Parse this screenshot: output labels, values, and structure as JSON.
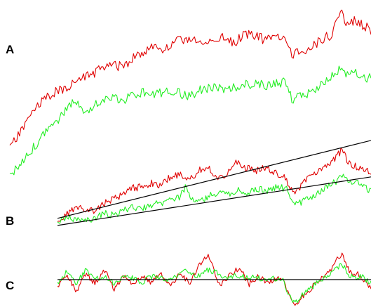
{
  "chart_data": [
    {
      "panel": "A",
      "type": "line",
      "title": "",
      "xlabel": "",
      "ylabel": "",
      "grid": false,
      "axes_visible": false,
      "x_range": [
        0,
        1
      ],
      "series": [
        {
          "color": "#e00000",
          "points": [
            [
              0.0,
              0.1
            ],
            [
              0.03,
              0.2
            ],
            [
              0.06,
              0.33
            ],
            [
              0.09,
              0.4
            ],
            [
              0.12,
              0.46
            ],
            [
              0.15,
              0.48
            ],
            [
              0.18,
              0.53
            ],
            [
              0.21,
              0.56
            ],
            [
              0.25,
              0.61
            ],
            [
              0.28,
              0.64
            ],
            [
              0.31,
              0.63
            ],
            [
              0.34,
              0.68
            ],
            [
              0.37,
              0.73
            ],
            [
              0.4,
              0.76
            ],
            [
              0.43,
              0.74
            ],
            [
              0.46,
              0.79
            ],
            [
              0.5,
              0.82
            ],
            [
              0.53,
              0.77
            ],
            [
              0.56,
              0.8
            ],
            [
              0.59,
              0.82
            ],
            [
              0.62,
              0.78
            ],
            [
              0.65,
              0.85
            ],
            [
              0.68,
              0.83
            ],
            [
              0.71,
              0.8
            ],
            [
              0.74,
              0.82
            ],
            [
              0.77,
              0.8
            ],
            [
              0.78,
              0.7
            ],
            [
              0.8,
              0.72
            ],
            [
              0.83,
              0.75
            ],
            [
              0.86,
              0.8
            ],
            [
              0.89,
              0.84
            ],
            [
              0.91,
              0.96
            ],
            [
              0.92,
              1.0
            ],
            [
              0.93,
              0.9
            ],
            [
              0.95,
              0.93
            ],
            [
              0.97,
              0.91
            ],
            [
              1.0,
              0.87
            ]
          ]
        },
        {
          "color": "#22ee22",
          "points": [
            [
              0.0,
              -0.08
            ],
            [
              0.03,
              -0.02
            ],
            [
              0.06,
              0.08
            ],
            [
              0.09,
              0.18
            ],
            [
              0.12,
              0.24
            ],
            [
              0.15,
              0.34
            ],
            [
              0.18,
              0.4
            ],
            [
              0.2,
              0.36
            ],
            [
              0.22,
              0.34
            ],
            [
              0.25,
              0.41
            ],
            [
              0.28,
              0.43
            ],
            [
              0.31,
              0.4
            ],
            [
              0.34,
              0.44
            ],
            [
              0.37,
              0.46
            ],
            [
              0.4,
              0.45
            ],
            [
              0.43,
              0.46
            ],
            [
              0.46,
              0.47
            ],
            [
              0.49,
              0.43
            ],
            [
              0.52,
              0.47
            ],
            [
              0.55,
              0.49
            ],
            [
              0.57,
              0.5
            ],
            [
              0.59,
              0.47
            ],
            [
              0.62,
              0.49
            ],
            [
              0.65,
              0.51
            ],
            [
              0.68,
              0.51
            ],
            [
              0.71,
              0.51
            ],
            [
              0.74,
              0.52
            ],
            [
              0.77,
              0.53
            ],
            [
              0.78,
              0.4
            ],
            [
              0.8,
              0.43
            ],
            [
              0.83,
              0.46
            ],
            [
              0.86,
              0.51
            ],
            [
              0.89,
              0.56
            ],
            [
              0.91,
              0.6
            ],
            [
              0.92,
              0.64
            ],
            [
              0.93,
              0.57
            ],
            [
              0.95,
              0.59
            ],
            [
              0.97,
              0.57
            ],
            [
              1.0,
              0.55
            ]
          ]
        }
      ]
    },
    {
      "panel": "B",
      "type": "line",
      "title": "",
      "xlabel": "",
      "ylabel": "",
      "grid": false,
      "axes_visible": false,
      "x_range": [
        0,
        1
      ],
      "series": [
        {
          "color": "#e00000",
          "points": [
            [
              0.0,
              0.0
            ],
            [
              0.03,
              0.1
            ],
            [
              0.06,
              0.15
            ],
            [
              0.09,
              0.14
            ],
            [
              0.12,
              0.12
            ],
            [
              0.15,
              0.2
            ],
            [
              0.18,
              0.25
            ],
            [
              0.21,
              0.28
            ],
            [
              0.24,
              0.35
            ],
            [
              0.27,
              0.36
            ],
            [
              0.3,
              0.4
            ],
            [
              0.33,
              0.38
            ],
            [
              0.36,
              0.46
            ],
            [
              0.39,
              0.48
            ],
            [
              0.42,
              0.42
            ],
            [
              0.45,
              0.52
            ],
            [
              0.48,
              0.55
            ],
            [
              0.51,
              0.46
            ],
            [
              0.54,
              0.48
            ],
            [
              0.57,
              0.6
            ],
            [
              0.6,
              0.55
            ],
            [
              0.63,
              0.52
            ],
            [
              0.66,
              0.55
            ],
            [
              0.69,
              0.5
            ],
            [
              0.72,
              0.48
            ],
            [
              0.74,
              0.36
            ],
            [
              0.76,
              0.3
            ],
            [
              0.79,
              0.42
            ],
            [
              0.82,
              0.48
            ],
            [
              0.85,
              0.55
            ],
            [
              0.88,
              0.62
            ],
            [
              0.9,
              0.7
            ],
            [
              0.91,
              0.74
            ],
            [
              0.92,
              0.64
            ],
            [
              0.94,
              0.58
            ],
            [
              0.96,
              0.55
            ],
            [
              0.98,
              0.52
            ],
            [
              1.0,
              0.5
            ]
          ]
        },
        {
          "color": "#22ee22",
          "points": [
            [
              0.0,
              0.0
            ],
            [
              0.03,
              0.06
            ],
            [
              0.06,
              0.04
            ],
            [
              0.09,
              0.02
            ],
            [
              0.12,
              0.05
            ],
            [
              0.15,
              0.1
            ],
            [
              0.18,
              0.08
            ],
            [
              0.21,
              0.13
            ],
            [
              0.24,
              0.16
            ],
            [
              0.27,
              0.14
            ],
            [
              0.3,
              0.18
            ],
            [
              0.33,
              0.2
            ],
            [
              0.36,
              0.24
            ],
            [
              0.39,
              0.26
            ],
            [
              0.41,
              0.36
            ],
            [
              0.43,
              0.24
            ],
            [
              0.46,
              0.22
            ],
            [
              0.49,
              0.28
            ],
            [
              0.52,
              0.32
            ],
            [
              0.55,
              0.3
            ],
            [
              0.58,
              0.33
            ],
            [
              0.61,
              0.3
            ],
            [
              0.64,
              0.34
            ],
            [
              0.67,
              0.32
            ],
            [
              0.7,
              0.36
            ],
            [
              0.73,
              0.34
            ],
            [
              0.75,
              0.18
            ],
            [
              0.77,
              0.2
            ],
            [
              0.8,
              0.24
            ],
            [
              0.83,
              0.3
            ],
            [
              0.86,
              0.36
            ],
            [
              0.89,
              0.42
            ],
            [
              0.91,
              0.48
            ],
            [
              0.93,
              0.4
            ],
            [
              0.95,
              0.42
            ],
            [
              0.97,
              0.38
            ],
            [
              1.0,
              0.32
            ]
          ]
        },
        {
          "color": "#000000",
          "role": "linear trend of red series",
          "points": [
            [
              0.0,
              0.05
            ],
            [
              1.0,
              0.82
            ]
          ]
        },
        {
          "color": "#000000",
          "role": "linear trend of green series",
          "points": [
            [
              0.0,
              -0.02
            ],
            [
              1.0,
              0.46
            ]
          ]
        }
      ]
    },
    {
      "panel": "C",
      "type": "line",
      "title": "",
      "xlabel": "",
      "ylabel": "",
      "grid": false,
      "axes_visible": false,
      "x_range": [
        0,
        1
      ],
      "baseline": 0,
      "series": [
        {
          "color": "#e00000",
          "points": [
            [
              0.0,
              -0.1
            ],
            [
              0.03,
              0.05
            ],
            [
              0.06,
              -0.15
            ],
            [
              0.09,
              0.08
            ],
            [
              0.12,
              -0.05
            ],
            [
              0.15,
              0.12
            ],
            [
              0.18,
              -0.12
            ],
            [
              0.21,
              0.05
            ],
            [
              0.24,
              -0.08
            ],
            [
              0.27,
              0.06
            ],
            [
              0.3,
              -0.04
            ],
            [
              0.33,
              0.08
            ],
            [
              0.36,
              -0.1
            ],
            [
              0.39,
              0.1
            ],
            [
              0.42,
              -0.05
            ],
            [
              0.45,
              0.18
            ],
            [
              0.48,
              0.3
            ],
            [
              0.5,
              0.1
            ],
            [
              0.52,
              -0.08
            ],
            [
              0.55,
              0.05
            ],
            [
              0.58,
              0.15
            ],
            [
              0.61,
              -0.06
            ],
            [
              0.64,
              0.04
            ],
            [
              0.67,
              -0.04
            ],
            [
              0.7,
              0.02
            ],
            [
              0.72,
              -0.02
            ],
            [
              0.74,
              -0.2
            ],
            [
              0.76,
              -0.32
            ],
            [
              0.78,
              -0.22
            ],
            [
              0.81,
              -0.1
            ],
            [
              0.84,
              0.02
            ],
            [
              0.87,
              0.1
            ],
            [
              0.89,
              0.25
            ],
            [
              0.91,
              0.32
            ],
            [
              0.92,
              0.18
            ],
            [
              0.94,
              0.05
            ],
            [
              0.96,
              0.08
            ],
            [
              0.98,
              -0.04
            ],
            [
              1.0,
              -0.1
            ]
          ]
        },
        {
          "color": "#22ee22",
          "points": [
            [
              0.0,
              -0.05
            ],
            [
              0.03,
              0.1
            ],
            [
              0.06,
              -0.05
            ],
            [
              0.09,
              0.12
            ],
            [
              0.12,
              0.0
            ],
            [
              0.15,
              0.05
            ],
            [
              0.18,
              -0.05
            ],
            [
              0.21,
              0.04
            ],
            [
              0.24,
              0.02
            ],
            [
              0.27,
              -0.03
            ],
            [
              0.3,
              0.04
            ],
            [
              0.33,
              0.02
            ],
            [
              0.36,
              0.0
            ],
            [
              0.39,
              0.06
            ],
            [
              0.41,
              0.14
            ],
            [
              0.43,
              0.06
            ],
            [
              0.45,
              0.04
            ],
            [
              0.48,
              0.12
            ],
            [
              0.51,
              0.08
            ],
            [
              0.54,
              0.02
            ],
            [
              0.57,
              0.06
            ],
            [
              0.6,
              0.02
            ],
            [
              0.63,
              0.04
            ],
            [
              0.66,
              0.0
            ],
            [
              0.69,
              0.02
            ],
            [
              0.72,
              0.0
            ],
            [
              0.74,
              -0.22
            ],
            [
              0.76,
              -0.28
            ],
            [
              0.78,
              -0.2
            ],
            [
              0.81,
              -0.1
            ],
            [
              0.84,
              0.0
            ],
            [
              0.87,
              0.08
            ],
            [
              0.89,
              0.14
            ],
            [
              0.91,
              0.18
            ],
            [
              0.93,
              0.06
            ],
            [
              0.95,
              0.02
            ],
            [
              0.97,
              0.04
            ],
            [
              1.0,
              -0.04
            ]
          ]
        },
        {
          "color": "#000000",
          "role": "zero baseline",
          "points": [
            [
              0.0,
              0.0
            ],
            [
              1.0,
              0.0
            ]
          ]
        }
      ]
    }
  ],
  "labels": {
    "panel_a": "A",
    "panel_b": "B",
    "panel_c": "C"
  }
}
